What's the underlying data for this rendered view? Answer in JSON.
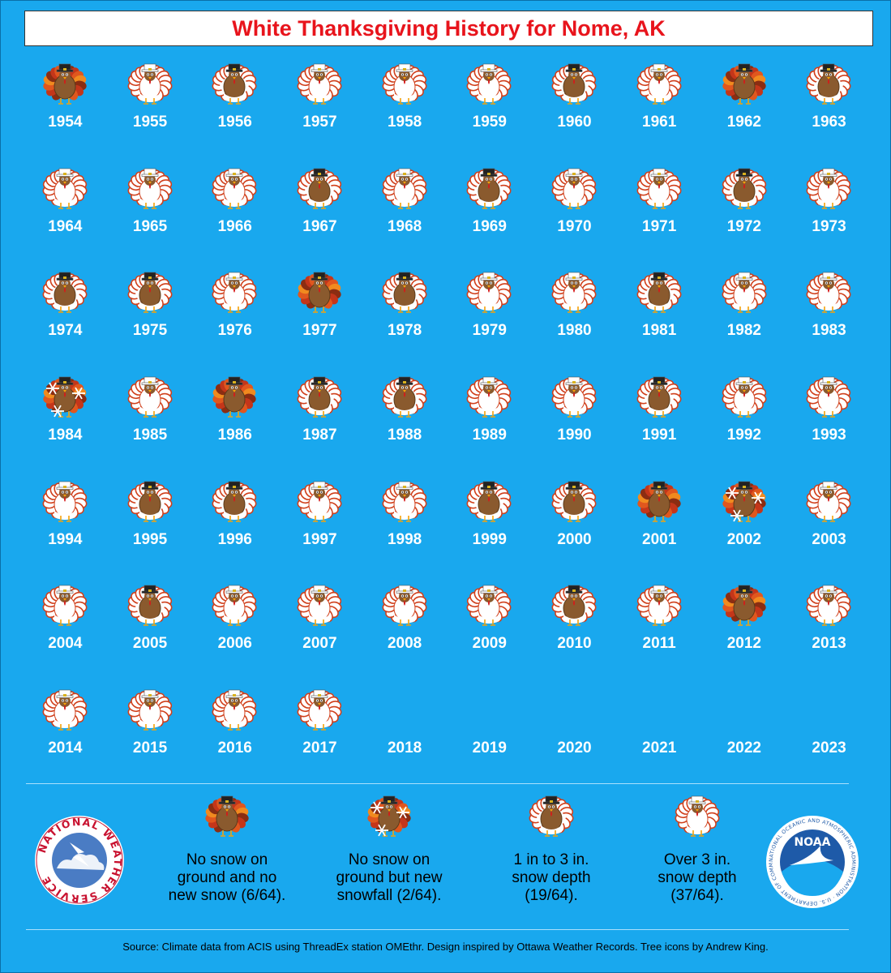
{
  "title": "White Thanksgiving History for Nome, AK",
  "colors": {
    "background": "#19a8ee",
    "title": "#e8141c"
  },
  "years": [
    {
      "year": "1954",
      "category": "no_snow"
    },
    {
      "year": "1955",
      "category": "over_3"
    },
    {
      "year": "1956",
      "category": "depth_1_3"
    },
    {
      "year": "1957",
      "category": "over_3"
    },
    {
      "year": "1958",
      "category": "over_3"
    },
    {
      "year": "1959",
      "category": "over_3"
    },
    {
      "year": "1960",
      "category": "depth_1_3"
    },
    {
      "year": "1961",
      "category": "over_3"
    },
    {
      "year": "1962",
      "category": "no_snow"
    },
    {
      "year": "1963",
      "category": "depth_1_3"
    },
    {
      "year": "1964",
      "category": "over_3"
    },
    {
      "year": "1965",
      "category": "over_3"
    },
    {
      "year": "1966",
      "category": "over_3"
    },
    {
      "year": "1967",
      "category": "depth_1_3"
    },
    {
      "year": "1968",
      "category": "over_3"
    },
    {
      "year": "1969",
      "category": "depth_1_3"
    },
    {
      "year": "1970",
      "category": "over_3"
    },
    {
      "year": "1971",
      "category": "over_3"
    },
    {
      "year": "1972",
      "category": "depth_1_3"
    },
    {
      "year": "1973",
      "category": "over_3"
    },
    {
      "year": "1974",
      "category": "depth_1_3"
    },
    {
      "year": "1975",
      "category": "depth_1_3"
    },
    {
      "year": "1976",
      "category": "over_3"
    },
    {
      "year": "1977",
      "category": "no_snow"
    },
    {
      "year": "1978",
      "category": "depth_1_3"
    },
    {
      "year": "1979",
      "category": "over_3"
    },
    {
      "year": "1980",
      "category": "over_3"
    },
    {
      "year": "1981",
      "category": "depth_1_3"
    },
    {
      "year": "1982",
      "category": "over_3"
    },
    {
      "year": "1983",
      "category": "over_3"
    },
    {
      "year": "1984",
      "category": "new_snow"
    },
    {
      "year": "1985",
      "category": "over_3"
    },
    {
      "year": "1986",
      "category": "no_snow"
    },
    {
      "year": "1987",
      "category": "depth_1_3"
    },
    {
      "year": "1988",
      "category": "depth_1_3"
    },
    {
      "year": "1989",
      "category": "over_3"
    },
    {
      "year": "1990",
      "category": "over_3"
    },
    {
      "year": "1991",
      "category": "depth_1_3"
    },
    {
      "year": "1992",
      "category": "over_3"
    },
    {
      "year": "1993",
      "category": "over_3"
    },
    {
      "year": "1994",
      "category": "over_3"
    },
    {
      "year": "1995",
      "category": "depth_1_3"
    },
    {
      "year": "1996",
      "category": "depth_1_3"
    },
    {
      "year": "1997",
      "category": "over_3"
    },
    {
      "year": "1998",
      "category": "over_3"
    },
    {
      "year": "1999",
      "category": "depth_1_3"
    },
    {
      "year": "2000",
      "category": "depth_1_3"
    },
    {
      "year": "2001",
      "category": "no_snow"
    },
    {
      "year": "2002",
      "category": "new_snow"
    },
    {
      "year": "2003",
      "category": "over_3"
    },
    {
      "year": "2004",
      "category": "over_3"
    },
    {
      "year": "2005",
      "category": "depth_1_3"
    },
    {
      "year": "2006",
      "category": "over_3"
    },
    {
      "year": "2007",
      "category": "over_3"
    },
    {
      "year": "2008",
      "category": "over_3"
    },
    {
      "year": "2009",
      "category": "over_3"
    },
    {
      "year": "2010",
      "category": "depth_1_3"
    },
    {
      "year": "2011",
      "category": "over_3"
    },
    {
      "year": "2012",
      "category": "no_snow"
    },
    {
      "year": "2013",
      "category": "over_3"
    },
    {
      "year": "2014",
      "category": "over_3"
    },
    {
      "year": "2015",
      "category": "over_3"
    },
    {
      "year": "2016",
      "category": "over_3"
    },
    {
      "year": "2017",
      "category": "over_3"
    },
    {
      "year": "2018",
      "category": null
    },
    {
      "year": "2019",
      "category": null
    },
    {
      "year": "2020",
      "category": null
    },
    {
      "year": "2021",
      "category": null
    },
    {
      "year": "2022",
      "category": null
    },
    {
      "year": "2023",
      "category": null
    }
  ],
  "legend": [
    {
      "category": "no_snow",
      "label": "No snow on\nground and no\nnew snow (6/64)."
    },
    {
      "category": "new_snow",
      "label": "No snow on\nground but new\nsnowfall (2/64)."
    },
    {
      "category": "depth_1_3",
      "label": "1 in to 3 in.\nsnow depth\n(19/64)."
    },
    {
      "category": "over_3",
      "label": "Over 3 in.\nsnow depth\n(37/64)."
    }
  ],
  "logos": {
    "nws": {
      "text": "NATIONAL WEATHER SERVICE"
    },
    "noaa": {
      "text": "NOAA",
      "ring": "NATIONAL OCEANIC AND ATMOSPHERIC ADMINISTRATION · U.S. DEPARTMENT OF COMMERCE"
    }
  },
  "source": "Source: Climate data from ACIS using ThreadEx station OMEthr. Design inspired by Ottawa Weather Records. Tree icons by Andrew King."
}
